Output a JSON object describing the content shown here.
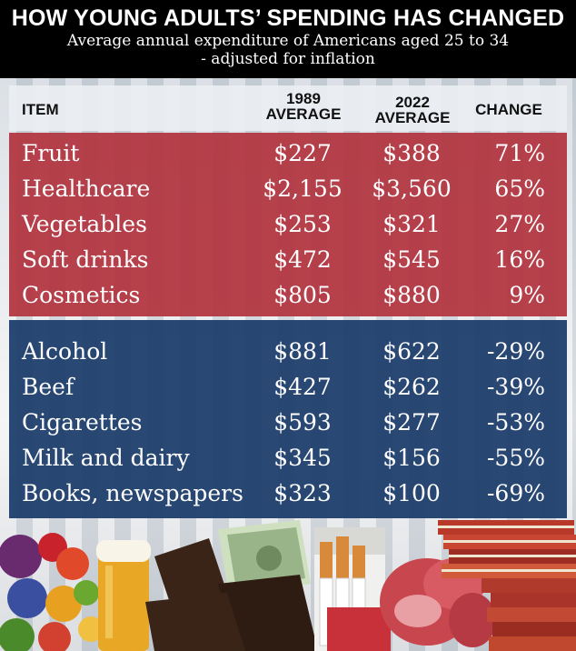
{
  "header": {
    "title": "HOW YOUNG ADULTS’ SPENDING HAS CHANGED",
    "subtitle_line1": "Average annual expenditure of Americans aged 25 to 34",
    "subtitle_line2": "- adjusted for inflation"
  },
  "columns": {
    "item": "ITEM",
    "avg1989_line1": "1989",
    "avg1989_line2": "AVERAGE",
    "avg2022_line1": "2022",
    "avg2022_line2": "AVERAGE",
    "change": "CHANGE"
  },
  "increase_rows": [
    {
      "item": "Fruit",
      "avg1989": "$227",
      "avg2022": "$388",
      "change": "71%"
    },
    {
      "item": "Healthcare",
      "avg1989": "$2,155",
      "avg2022": "$3,560",
      "change": "65%"
    },
    {
      "item": "Vegetables",
      "avg1989": "$253",
      "avg2022": "$321",
      "change": "27%"
    },
    {
      "item": "Soft drinks",
      "avg1989": "$472",
      "avg2022": "$545",
      "change": "16%"
    },
    {
      "item": "Cosmetics",
      "avg1989": "$805",
      "avg2022": "$880",
      "change": "9%"
    }
  ],
  "decrease_rows": [
    {
      "item": "Alcohol",
      "avg1989": "$881",
      "avg2022": "$622",
      "change": "-29%"
    },
    {
      "item": "Beef",
      "avg1989": "$427",
      "avg2022": "$262",
      "change": "-39%"
    },
    {
      "item": "Cigarettes",
      "avg1989": "$593",
      "avg2022": "$277",
      "change": "-53%"
    },
    {
      "item": "Milk and dairy",
      "avg1989": "$345",
      "avg2022": "$156",
      "change": "-55%"
    },
    {
      "item": "Books, newspapers",
      "avg1989": "$323",
      "avg2022": "$100",
      "change": "-69%"
    }
  ],
  "colors": {
    "increase_block": "#b2343e",
    "decrease_block": "#1e3e6c",
    "header_bg": "#000000"
  },
  "photo_icons": [
    "fruit-and-vegetables-icon",
    "beer-glass-icon",
    "cash-in-hands-icon",
    "cigarettes-icon",
    "raw-beef-icon",
    "stacked-books-icon"
  ]
}
